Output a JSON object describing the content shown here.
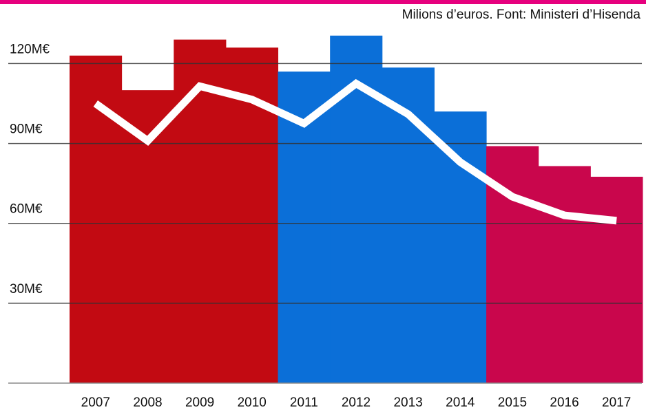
{
  "chart_data": {
    "type": "bar-line",
    "subtitle": "Milions d’euros. Font: Ministeri d’Hisenda",
    "categories": [
      "2007",
      "2008",
      "2009",
      "2010",
      "2011",
      "2012",
      "2013",
      "2014",
      "2015",
      "2016",
      "2017"
    ],
    "series": [
      {
        "type": "bar",
        "values": [
          123,
          110,
          129,
          126,
          117,
          130.5,
          118.5,
          102,
          89,
          81.5,
          77.5
        ],
        "colors": [
          "#c20a12",
          "#c20a12",
          "#c20a12",
          "#c20a12",
          "#0b6fd8",
          "#0b6fd8",
          "#0b6fd8",
          "#0b6fd8",
          "#c9064c",
          "#c9064c",
          "#c9064c"
        ]
      },
      {
        "type": "line",
        "color": "#ffffff",
        "values": [
          105,
          91,
          111.5,
          106.5,
          97.5,
          112.5,
          101,
          83,
          70,
          63,
          61
        ]
      }
    ],
    "ylim": [
      0,
      140
    ],
    "yticks": [
      {
        "value": 30,
        "label": "30M€"
      },
      {
        "value": 60,
        "label": "60M€"
      },
      {
        "value": 90,
        "label": "90M€"
      },
      {
        "value": 120,
        "label": "120M€"
      }
    ],
    "grid": true
  }
}
